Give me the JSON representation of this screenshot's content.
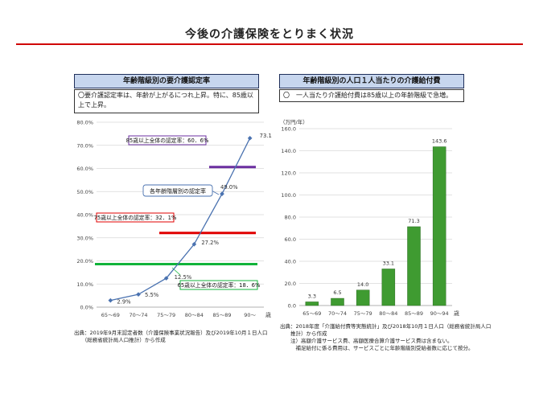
{
  "page": {
    "title": "今後の介護保険をとりまく状況"
  },
  "left": {
    "header": "年齢階級別の要介護認定率",
    "note": "〇要介護認定率は、年齢が上がるにつれ上昇。特に、85歳以上で上昇。",
    "source": "出典：2019年9月末認定者数（介護保険事業状況報告）及び2019年10月１日人口\n　　（総務省統計局人口推計）から作成"
  },
  "right": {
    "header": "年齢階級別の人口１人当たりの介護給付費",
    "note": "〇　一人当たり介護給付費は85歳以上の年齢階級で急増。",
    "unit": "（万円/年）",
    "source": "出典：2018年度「介護給付費等実態統計」及び2018年10月１日人口（総務省統計局人口\n　　推計）から作成\n　　注）高額介護サービス費、高額医療合算介護サービス費は含まない。\n　　　補足給付に係る費用は、サービスごとに年齢階級別受給者数に応じて按分。"
  },
  "colors": {
    "line": "#4a72b0",
    "bar": "#3f9b31",
    "purple": "#6b2fa0",
    "red": "#e00000",
    "green": "#11b33a"
  },
  "chart_data": [
    {
      "type": "line",
      "categories": [
        "65～69",
        "70～74",
        "75～79",
        "80～84",
        "85～89",
        "90～"
      ],
      "x_unit": "歳",
      "series": [
        {
          "name": "各年齢階層別の認定率",
          "values": [
            2.9,
            5.5,
            12.5,
            27.2,
            49.0,
            73.1
          ],
          "labels": [
            "2.9%",
            "5.5%",
            "12.5%",
            "27.2%",
            "49.0%",
            "73.1%"
          ]
        }
      ],
      "ylim": [
        0,
        80
      ],
      "yticks": [
        "0.0%",
        "10.0%",
        "20.0%",
        "30.0%",
        "40.0%",
        "50.0%",
        "60.0%",
        "70.0%",
        "80.0%"
      ],
      "grid": true,
      "reference_lines": [
        {
          "label": "85歳以上全体の認定率：60．6%",
          "value": 60.6,
          "color": "purple"
        },
        {
          "label": "75歳以上全体の認定率：32．1%",
          "value": 32.1,
          "color": "red"
        },
        {
          "label": "65歳以上全体の認定率：18．6%",
          "value": 18.6,
          "color": "green"
        }
      ]
    },
    {
      "type": "bar",
      "categories": [
        "65～69",
        "70～74",
        "75～79",
        "80～84",
        "85～89",
        "90～94"
      ],
      "x_unit": "歳",
      "values": [
        3.3,
        6.5,
        14.0,
        33.1,
        71.3,
        143.6
      ],
      "value_labels": [
        "3.3",
        "6.5",
        "14.0",
        "33.1",
        "71.3",
        "143.6"
      ],
      "ylim": [
        0,
        160
      ],
      "yticks": [
        "0.0",
        "20.0",
        "40.0",
        "60.0",
        "80.0",
        "100.0",
        "120.0",
        "140.0",
        "160.0"
      ],
      "grid": true
    }
  ]
}
